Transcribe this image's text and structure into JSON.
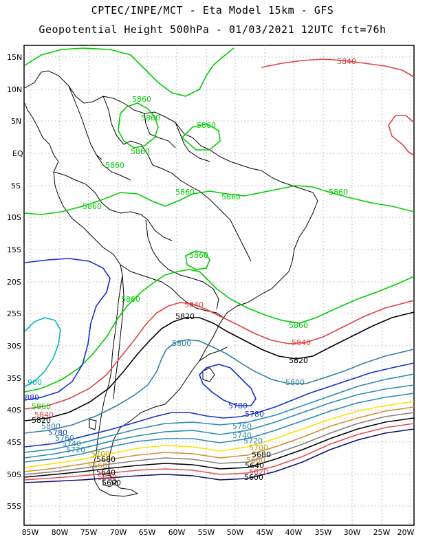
{
  "header": {
    "line1": "CPTEC/INPE/MCT -  Eta Model 15km - GFS",
    "line2": "Geopotential Height 500hPa - 01/03/2021 12UTC fct=76h"
  },
  "axes": {
    "lat_labels": [
      "15N",
      "10N",
      "5N",
      "EQ",
      "5S",
      "10S",
      "15S",
      "20S",
      "25S",
      "30S",
      "35S",
      "40S",
      "45S",
      "50S",
      "55S"
    ],
    "lon_labels": [
      "85W",
      "80W",
      "75W",
      "70W",
      "65W",
      "60W",
      "55W",
      "50W",
      "45W",
      "40W",
      "35W",
      "30W",
      "25W",
      "20W"
    ],
    "grid": "dotted"
  },
  "colors": {
    "c5400": "#10106e",
    "c5460": "#000000",
    "c5520": "#e05050",
    "c5580": "#d09030",
    "c5640": "#ffe000",
    "c5700": "#ffe000",
    "c5720": "#2a8ab0",
    "c5740": "#2a8ab0",
    "c5760": "#2a8ab0",
    "c5780": "#1030d0",
    "c5800": "#3080a0",
    "c5820": "#000000",
    "c5840": "#e04040",
    "c5860": "#00cc00",
    "c5900": "#00b8b8",
    "coast": "#000000"
  },
  "contour_labels": {
    "c5860": "5860",
    "c5840": "5840",
    "c5820": "5820",
    "c5800": "5800",
    "c5780": "5780",
    "c5760": "5760",
    "c5740": "5740",
    "c5720": "5720",
    "c5700": "5700",
    "c5680": "5680",
    "c5660": "5660",
    "c5640": "5640",
    "c5620": "5620",
    "c5600": "5600",
    "c900": "900",
    "c880": "880"
  }
}
